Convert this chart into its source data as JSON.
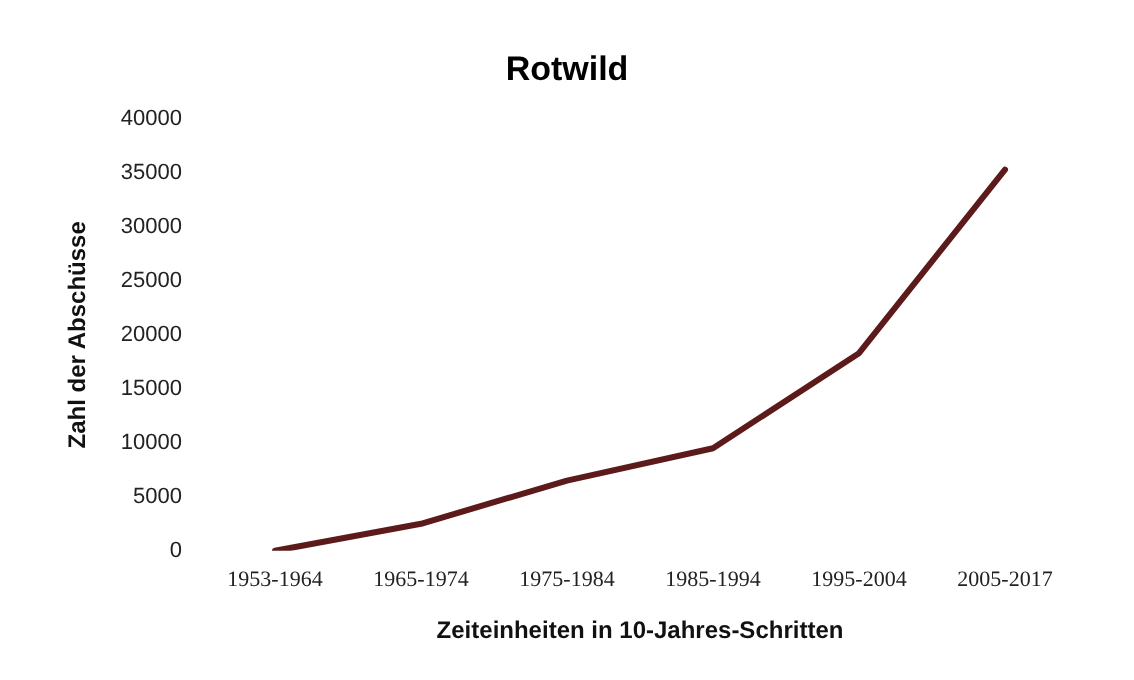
{
  "chart_data": {
    "type": "line",
    "title": "Rotwild",
    "xlabel": "Zeiteinheiten in 10-Jahres-Schritten",
    "ylabel": "Zahl der Abschüsse",
    "categories": [
      "1953-1964",
      "1965-1974",
      "1975-1984",
      "1985-1994",
      "1995-2004",
      "2005-2017"
    ],
    "series": [
      {
        "color": "#5c1a1a",
        "values": [
          0,
          2500,
          6500,
          9500,
          18300,
          35300
        ]
      }
    ],
    "ylim": [
      0,
      40000
    ],
    "yticks": [
      0,
      5000,
      10000,
      15000,
      20000,
      25000,
      30000,
      35000,
      40000
    ],
    "grid": false,
    "legend": false,
    "marker": "none",
    "line_style": "solid"
  }
}
